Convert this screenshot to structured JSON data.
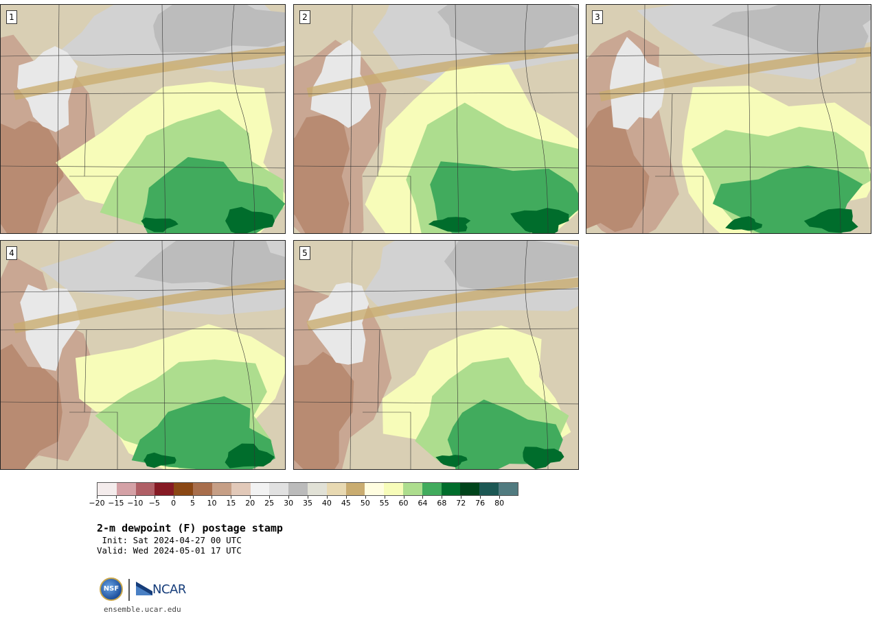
{
  "panels": [
    {
      "label": "1",
      "wetness": 0.72,
      "dry_north": 0.45
    },
    {
      "label": "2",
      "wetness": 0.78,
      "dry_north": 0.55
    },
    {
      "label": "3",
      "wetness": 0.7,
      "dry_north": 0.4
    },
    {
      "label": "4",
      "wetness": 0.68,
      "dry_north": 0.55
    },
    {
      "label": "5",
      "wetness": 0.6,
      "dry_north": 0.65
    }
  ],
  "colorbar": {
    "colors": [
      "#f4ecec",
      "#d4a1a6",
      "#b05f66",
      "#861a24",
      "#8a4714",
      "#a86e4c",
      "#c69f86",
      "#e2c9b9",
      "#f2f2f2",
      "#e1e1e1",
      "#bbbbbb",
      "#e1e1d6",
      "#e8d9b2",
      "#c9ac70",
      "#fffde0",
      "#f7fcb9",
      "#addd8e",
      "#41ab5d",
      "#006d2c",
      "#00441b",
      "#1c5854",
      "#517b80"
    ],
    "tick_labels": [
      "−20",
      "−15",
      "−10",
      "−5",
      "0",
      "5",
      "10",
      "15",
      "20",
      "25",
      "30",
      "35",
      "40",
      "45",
      "50",
      "55",
      "60",
      "64",
      "68",
      "72",
      "76",
      "80"
    ]
  },
  "title": "2-m dewpoint (F) postage stamp",
  "init_line": " Init: Sat 2024-04-27 00 UTC",
  "valid_line": "Valid: Wed 2024-05-01 17 UTC",
  "logos": {
    "nsf_text": "NSF",
    "ncar_text": "NCAR"
  },
  "website": "ensemble.ucar.edu"
}
